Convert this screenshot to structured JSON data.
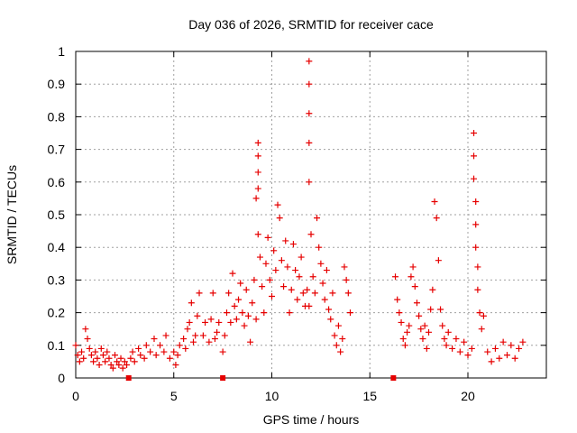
{
  "chart_data": {
    "type": "scatter",
    "title": "Day 036 of 2026, SRMTID for receiver cace",
    "xlabel": "GPS time / hours",
    "ylabel": "SRMTID / TECUs",
    "xlim": [
      0,
      24
    ],
    "ylim": [
      0,
      1
    ],
    "x_ticks": [
      {
        "v": 0,
        "label": "0"
      },
      {
        "v": 5,
        "label": "5"
      },
      {
        "v": 10,
        "label": "10"
      },
      {
        "v": 15,
        "label": "15"
      },
      {
        "v": 20,
        "label": "20"
      }
    ],
    "y_ticks": [
      {
        "v": 0,
        "label": "0"
      },
      {
        "v": 0.1,
        "label": "0.1"
      },
      {
        "v": 0.2,
        "label": "0.2"
      },
      {
        "v": 0.3,
        "label": "0.3"
      },
      {
        "v": 0.4,
        "label": "0.4"
      },
      {
        "v": 0.5,
        "label": "0.5"
      },
      {
        "v": 0.6,
        "label": "0.6"
      },
      {
        "v": 0.7,
        "label": "0.7"
      },
      {
        "v": 0.8,
        "label": "0.8"
      },
      {
        "v": 0.9,
        "label": "0.9"
      },
      {
        "v": 1,
        "label": "1"
      }
    ],
    "grid": true,
    "marker": "plus",
    "color": "#e60000",
    "series": [
      {
        "name": "SRMTID",
        "points": [
          [
            0.0,
            0.1
          ],
          [
            0.1,
            0.07
          ],
          [
            0.2,
            0.05
          ],
          [
            0.3,
            0.08
          ],
          [
            0.4,
            0.06
          ],
          [
            0.5,
            0.15
          ],
          [
            0.6,
            0.12
          ],
          [
            0.7,
            0.09
          ],
          [
            0.8,
            0.07
          ],
          [
            0.9,
            0.05
          ],
          [
            1.0,
            0.08
          ],
          [
            1.1,
            0.06
          ],
          [
            1.2,
            0.04
          ],
          [
            1.3,
            0.09
          ],
          [
            1.4,
            0.07
          ],
          [
            1.5,
            0.05
          ],
          [
            1.6,
            0.08
          ],
          [
            1.7,
            0.06
          ],
          [
            1.8,
            0.04
          ],
          [
            1.9,
            0.03
          ],
          [
            2.0,
            0.07
          ],
          [
            2.1,
            0.05
          ],
          [
            2.2,
            0.04
          ],
          [
            2.3,
            0.06
          ],
          [
            2.4,
            0.03
          ],
          [
            2.5,
            0.05
          ],
          [
            2.6,
            0.04
          ],
          [
            2.8,
            0.06
          ],
          [
            2.9,
            0.08
          ],
          [
            3.0,
            0.05
          ],
          [
            3.2,
            0.09
          ],
          [
            3.3,
            0.07
          ],
          [
            3.5,
            0.06
          ],
          [
            3.6,
            0.1
          ],
          [
            3.8,
            0.08
          ],
          [
            4.0,
            0.12
          ],
          [
            4.1,
            0.07
          ],
          [
            4.3,
            0.1
          ],
          [
            4.5,
            0.08
          ],
          [
            4.6,
            0.13
          ],
          [
            4.8,
            0.06
          ],
          [
            5.0,
            0.08
          ],
          [
            5.1,
            0.04
          ],
          [
            5.2,
            0.07
          ],
          [
            5.3,
            0.1
          ],
          [
            5.5,
            0.12
          ],
          [
            5.6,
            0.09
          ],
          [
            5.7,
            0.15
          ],
          [
            5.8,
            0.17
          ],
          [
            5.9,
            0.23
          ],
          [
            6.0,
            0.11
          ],
          [
            6.1,
            0.13
          ],
          [
            6.2,
            0.19
          ],
          [
            6.3,
            0.26
          ],
          [
            6.5,
            0.13
          ],
          [
            6.6,
            0.17
          ],
          [
            6.8,
            0.11
          ],
          [
            6.9,
            0.18
          ],
          [
            7.0,
            0.26
          ],
          [
            7.1,
            0.12
          ],
          [
            7.2,
            0.14
          ],
          [
            7.3,
            0.17
          ],
          [
            7.5,
            0.08
          ],
          [
            7.6,
            0.13
          ],
          [
            7.7,
            0.2
          ],
          [
            7.8,
            0.26
          ],
          [
            7.9,
            0.17
          ],
          [
            8.0,
            0.32
          ],
          [
            8.1,
            0.22
          ],
          [
            8.2,
            0.18
          ],
          [
            8.3,
            0.24
          ],
          [
            8.4,
            0.29
          ],
          [
            8.5,
            0.2
          ],
          [
            8.6,
            0.16
          ],
          [
            8.7,
            0.27
          ],
          [
            8.8,
            0.19
          ],
          [
            8.9,
            0.11
          ],
          [
            9.0,
            0.23
          ],
          [
            9.1,
            0.3
          ],
          [
            9.2,
            0.18
          ],
          [
            9.3,
            0.72
          ],
          [
            9.3,
            0.68
          ],
          [
            9.3,
            0.63
          ],
          [
            9.3,
            0.58
          ],
          [
            9.2,
            0.55
          ],
          [
            9.3,
            0.44
          ],
          [
            9.4,
            0.37
          ],
          [
            9.5,
            0.28
          ],
          [
            9.6,
            0.2
          ],
          [
            9.7,
            0.35
          ],
          [
            9.8,
            0.43
          ],
          [
            9.9,
            0.3
          ],
          [
            10.0,
            0.25
          ],
          [
            10.1,
            0.39
          ],
          [
            10.2,
            0.33
          ],
          [
            10.3,
            0.53
          ],
          [
            10.4,
            0.49
          ],
          [
            10.5,
            0.36
          ],
          [
            10.6,
            0.28
          ],
          [
            10.7,
            0.42
          ],
          [
            10.8,
            0.34
          ],
          [
            10.9,
            0.2
          ],
          [
            11.0,
            0.27
          ],
          [
            11.1,
            0.41
          ],
          [
            11.2,
            0.33
          ],
          [
            11.3,
            0.24
          ],
          [
            11.4,
            0.31
          ],
          [
            11.5,
            0.37
          ],
          [
            11.6,
            0.26
          ],
          [
            11.7,
            0.22
          ],
          [
            11.8,
            0.27
          ],
          [
            11.9,
            0.22
          ],
          [
            11.9,
            0.97
          ],
          [
            11.9,
            0.9
          ],
          [
            11.9,
            0.81
          ],
          [
            11.9,
            0.72
          ],
          [
            11.9,
            0.6
          ],
          [
            12.0,
            0.44
          ],
          [
            12.1,
            0.31
          ],
          [
            12.2,
            0.26
          ],
          [
            12.3,
            0.49
          ],
          [
            12.4,
            0.4
          ],
          [
            12.5,
            0.35
          ],
          [
            12.6,
            0.29
          ],
          [
            12.7,
            0.24
          ],
          [
            12.8,
            0.33
          ],
          [
            12.9,
            0.21
          ],
          [
            13.0,
            0.18
          ],
          [
            13.1,
            0.26
          ],
          [
            13.2,
            0.13
          ],
          [
            13.3,
            0.1
          ],
          [
            13.4,
            0.16
          ],
          [
            13.5,
            0.08
          ],
          [
            13.6,
            0.12
          ],
          [
            13.7,
            0.34
          ],
          [
            13.8,
            0.3
          ],
          [
            13.9,
            0.26
          ],
          [
            14.0,
            0.2
          ],
          [
            16.3,
            0.31
          ],
          [
            16.4,
            0.24
          ],
          [
            16.5,
            0.2
          ],
          [
            16.6,
            0.17
          ],
          [
            16.7,
            0.12
          ],
          [
            16.8,
            0.1
          ],
          [
            16.9,
            0.14
          ],
          [
            17.0,
            0.16
          ],
          [
            17.1,
            0.31
          ],
          [
            17.2,
            0.34
          ],
          [
            17.3,
            0.28
          ],
          [
            17.4,
            0.23
          ],
          [
            17.5,
            0.19
          ],
          [
            17.6,
            0.15
          ],
          [
            17.7,
            0.12
          ],
          [
            17.8,
            0.16
          ],
          [
            17.9,
            0.09
          ],
          [
            18.0,
            0.14
          ],
          [
            18.1,
            0.21
          ],
          [
            18.2,
            0.27
          ],
          [
            18.3,
            0.54
          ],
          [
            18.4,
            0.49
          ],
          [
            18.5,
            0.36
          ],
          [
            18.6,
            0.21
          ],
          [
            18.7,
            0.16
          ],
          [
            18.8,
            0.12
          ],
          [
            18.9,
            0.1
          ],
          [
            19.0,
            0.14
          ],
          [
            19.2,
            0.09
          ],
          [
            19.4,
            0.12
          ],
          [
            19.6,
            0.08
          ],
          [
            19.8,
            0.11
          ],
          [
            20.0,
            0.07
          ],
          [
            20.2,
            0.09
          ],
          [
            20.3,
            0.75
          ],
          [
            20.3,
            0.68
          ],
          [
            20.3,
            0.61
          ],
          [
            20.4,
            0.54
          ],
          [
            20.4,
            0.47
          ],
          [
            20.4,
            0.4
          ],
          [
            20.5,
            0.34
          ],
          [
            20.5,
            0.27
          ],
          [
            20.6,
            0.2
          ],
          [
            20.7,
            0.15
          ],
          [
            20.8,
            0.19
          ],
          [
            21.0,
            0.08
          ],
          [
            21.2,
            0.05
          ],
          [
            21.4,
            0.09
          ],
          [
            21.6,
            0.06
          ],
          [
            21.8,
            0.11
          ],
          [
            22.0,
            0.07
          ],
          [
            22.2,
            0.1
          ],
          [
            22.4,
            0.06
          ],
          [
            22.6,
            0.09
          ],
          [
            22.8,
            0.11
          ]
        ]
      },
      {
        "name": "gaps",
        "marker": "square",
        "points": [
          [
            2.7,
            0.0
          ],
          [
            7.5,
            0.0
          ],
          [
            16.2,
            0.0
          ]
        ]
      }
    ]
  }
}
